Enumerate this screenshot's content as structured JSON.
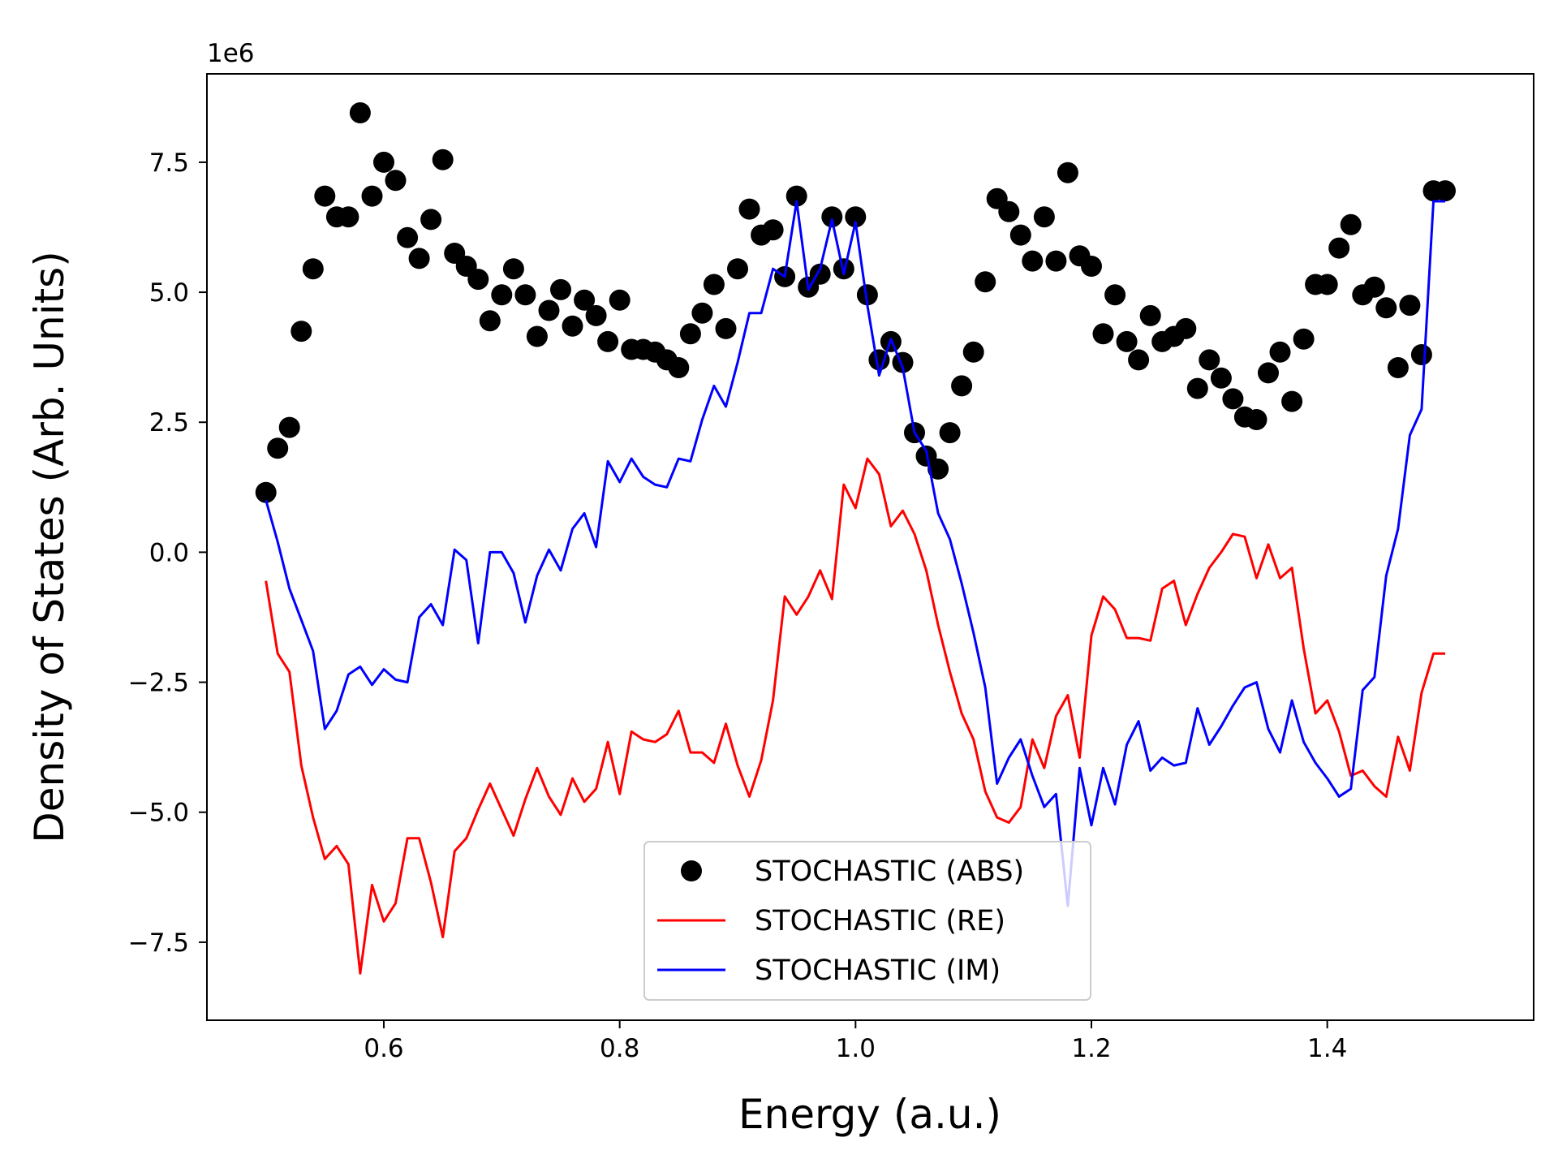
{
  "chart_data": {
    "type": "line",
    "title": "",
    "xlabel": "Energy (a.u.)",
    "ylabel": "Density of States (Arb. Units)",
    "y_offset_label": "1e6",
    "xlim": [
      0.45,
      1.575
    ],
    "ylim": [
      -9.0,
      9.2
    ],
    "y_scale_factor": 1000000,
    "grid": false,
    "legend_position": "lower-center",
    "x_ticks": [
      0.6,
      0.8,
      1.0,
      1.2,
      1.4
    ],
    "x_tick_labels": [
      "0.6",
      "0.8",
      "1.0",
      "1.2",
      "1.4"
    ],
    "y_ticks": [
      -7.5,
      -5.0,
      -2.5,
      0.0,
      2.5,
      5.0,
      7.5
    ],
    "y_tick_labels": [
      "−7.5",
      "−5.0",
      "−2.5",
      "0.0",
      "2.5",
      "5.0",
      "7.5"
    ],
    "series": [
      {
        "name": "STOCHASTIC (ABS)",
        "style": "marker",
        "color": "#000000",
        "x": [
          0.5,
          0.51,
          0.52,
          0.53,
          0.54,
          0.55,
          0.56,
          0.57,
          0.58,
          0.59,
          0.6,
          0.61,
          0.62,
          0.63,
          0.64,
          0.65,
          0.66,
          0.67,
          0.68,
          0.69,
          0.7,
          0.71,
          0.72,
          0.73,
          0.74,
          0.75,
          0.76,
          0.77,
          0.78,
          0.79,
          0.8,
          0.81,
          0.82,
          0.83,
          0.84,
          0.85,
          0.86,
          0.87,
          0.88,
          0.89,
          0.9,
          0.91,
          0.92,
          0.93,
          0.94,
          0.95,
          0.96,
          0.97,
          0.98,
          0.99,
          1.0,
          1.01,
          1.02,
          1.03,
          1.04,
          1.05,
          1.06,
          1.07,
          1.08,
          1.09,
          1.1,
          1.11,
          1.12,
          1.13,
          1.14,
          1.15,
          1.16,
          1.17,
          1.18,
          1.19,
          1.2,
          1.21,
          1.22,
          1.23,
          1.24,
          1.25,
          1.26,
          1.27,
          1.28,
          1.29,
          1.3,
          1.31,
          1.32,
          1.33,
          1.34,
          1.35,
          1.36,
          1.37,
          1.38,
          1.39,
          1.4,
          1.41,
          1.42,
          1.43,
          1.44,
          1.45,
          1.46,
          1.47,
          1.48,
          1.49,
          1.5
        ],
        "y": [
          1.15,
          2.0,
          2.4,
          4.25,
          5.45,
          6.85,
          6.45,
          6.45,
          8.45,
          6.85,
          7.5,
          7.15,
          6.05,
          5.65,
          6.4,
          7.55,
          5.75,
          5.5,
          5.25,
          4.45,
          4.95,
          5.45,
          4.95,
          4.15,
          4.65,
          5.05,
          4.35,
          4.85,
          4.55,
          4.05,
          4.85,
          3.9,
          3.9,
          3.85,
          3.7,
          3.55,
          4.2,
          4.6,
          5.15,
          4.3,
          5.45,
          6.6,
          6.1,
          6.2,
          5.3,
          6.85,
          5.1,
          5.35,
          6.45,
          5.45,
          6.45,
          4.95,
          3.7,
          4.05,
          3.65,
          2.3,
          1.85,
          1.6,
          2.3,
          3.2,
          3.85,
          5.2,
          6.8,
          6.55,
          6.1,
          5.6,
          6.45,
          5.6,
          7.3,
          5.7,
          5.5,
          4.2,
          4.95,
          4.05,
          3.7,
          4.55,
          4.05,
          4.15,
          4.3,
          3.15,
          3.7,
          3.35,
          2.95,
          2.6,
          2.55,
          3.45,
          3.85,
          2.9,
          4.1,
          5.15,
          5.15,
          5.85,
          6.3,
          4.95,
          5.1,
          4.7,
          3.55,
          4.75,
          3.8,
          6.95,
          6.95
        ]
      },
      {
        "name": "STOCHASTIC (RE)",
        "style": "line",
        "color": "#ff0000",
        "x": [
          0.5,
          0.51,
          0.52,
          0.53,
          0.54,
          0.55,
          0.56,
          0.57,
          0.58,
          0.59,
          0.6,
          0.61,
          0.62,
          0.63,
          0.64,
          0.65,
          0.66,
          0.67,
          0.68,
          0.69,
          0.7,
          0.71,
          0.72,
          0.73,
          0.74,
          0.75,
          0.76,
          0.77,
          0.78,
          0.79,
          0.8,
          0.81,
          0.82,
          0.83,
          0.84,
          0.85,
          0.86,
          0.87,
          0.88,
          0.89,
          0.9,
          0.91,
          0.92,
          0.93,
          0.94,
          0.95,
          0.96,
          0.97,
          0.98,
          0.99,
          1.0,
          1.01,
          1.02,
          1.03,
          1.04,
          1.05,
          1.06,
          1.07,
          1.08,
          1.09,
          1.1,
          1.11,
          1.12,
          1.13,
          1.14,
          1.15,
          1.16,
          1.17,
          1.18,
          1.19,
          1.2,
          1.21,
          1.22,
          1.23,
          1.24,
          1.25,
          1.26,
          1.27,
          1.28,
          1.29,
          1.3,
          1.31,
          1.32,
          1.33,
          1.34,
          1.35,
          1.36,
          1.37,
          1.38,
          1.39,
          1.4,
          1.41,
          1.42,
          1.43,
          1.44,
          1.45,
          1.46,
          1.47,
          1.48,
          1.49,
          1.5
        ],
        "y": [
          -0.55,
          -1.95,
          -2.3,
          -4.1,
          -5.1,
          -5.9,
          -5.65,
          -6.0,
          -8.1,
          -6.4,
          -7.1,
          -6.75,
          -5.5,
          -5.5,
          -6.35,
          -7.4,
          -5.75,
          -5.5,
          -4.95,
          -4.45,
          -4.95,
          -5.45,
          -4.75,
          -4.15,
          -4.7,
          -5.05,
          -4.35,
          -4.8,
          -4.55,
          -3.65,
          -4.65,
          -3.45,
          -3.6,
          -3.65,
          -3.5,
          -3.05,
          -3.85,
          -3.85,
          -4.05,
          -3.3,
          -4.1,
          -4.7,
          -4.0,
          -2.85,
          -0.85,
          -1.2,
          -0.85,
          -0.35,
          -0.9,
          1.3,
          0.85,
          1.8,
          1.5,
          0.5,
          0.8,
          0.35,
          -0.35,
          -1.4,
          -2.3,
          -3.1,
          -3.6,
          -4.6,
          -5.1,
          -5.2,
          -4.9,
          -3.6,
          -4.15,
          -3.15,
          -2.75,
          -3.95,
          -1.6,
          -0.85,
          -1.1,
          -1.65,
          -1.65,
          -1.7,
          -0.7,
          -0.55,
          -1.4,
          -0.8,
          -0.3,
          0.0,
          0.35,
          0.3,
          -0.5,
          0.15,
          -0.5,
          -0.3,
          -1.85,
          -3.1,
          -2.85,
          -3.45,
          -4.3,
          -4.2,
          -4.5,
          -4.7,
          -3.55,
          -4.2,
          -2.7,
          -1.95,
          -1.95
        ]
      },
      {
        "name": "STOCHASTIC (IM)",
        "style": "line",
        "color": "#0000ff",
        "x": [
          0.5,
          0.51,
          0.52,
          0.53,
          0.54,
          0.55,
          0.56,
          0.57,
          0.58,
          0.59,
          0.6,
          0.61,
          0.62,
          0.63,
          0.64,
          0.65,
          0.66,
          0.67,
          0.68,
          0.69,
          0.7,
          0.71,
          0.72,
          0.73,
          0.74,
          0.75,
          0.76,
          0.77,
          0.78,
          0.79,
          0.8,
          0.81,
          0.82,
          0.83,
          0.84,
          0.85,
          0.86,
          0.87,
          0.88,
          0.89,
          0.9,
          0.91,
          0.92,
          0.93,
          0.94,
          0.95,
          0.96,
          0.97,
          0.98,
          0.99,
          1.0,
          1.01,
          1.02,
          1.03,
          1.04,
          1.05,
          1.06,
          1.07,
          1.08,
          1.09,
          1.1,
          1.11,
          1.12,
          1.13,
          1.14,
          1.15,
          1.16,
          1.17,
          1.18,
          1.19,
          1.2,
          1.21,
          1.22,
          1.23,
          1.24,
          1.25,
          1.26,
          1.27,
          1.28,
          1.29,
          1.3,
          1.31,
          1.32,
          1.33,
          1.34,
          1.35,
          1.36,
          1.37,
          1.38,
          1.39,
          1.4,
          1.41,
          1.42,
          1.43,
          1.44,
          1.45,
          1.46,
          1.47,
          1.48,
          1.49,
          1.5
        ],
        "y": [
          1.0,
          0.2,
          -0.7,
          -1.3,
          -1.9,
          -3.4,
          -3.05,
          -2.35,
          -2.2,
          -2.55,
          -2.25,
          -2.45,
          -2.5,
          -1.25,
          -1.0,
          -1.4,
          0.05,
          -0.15,
          -1.75,
          0.0,
          0.0,
          -0.4,
          -1.35,
          -0.45,
          0.05,
          -0.35,
          0.45,
          0.75,
          0.1,
          1.75,
          1.35,
          1.8,
          1.45,
          1.3,
          1.25,
          1.8,
          1.75,
          2.55,
          3.2,
          2.8,
          3.65,
          4.6,
          4.6,
          5.45,
          5.3,
          6.75,
          5.05,
          5.45,
          6.4,
          5.35,
          6.35,
          4.75,
          3.4,
          4.1,
          3.55,
          2.3,
          1.95,
          0.75,
          0.25,
          -0.6,
          -1.55,
          -2.6,
          -4.45,
          -3.95,
          -3.6,
          -4.3,
          -4.9,
          -4.65,
          -6.8,
          -4.15,
          -5.25,
          -4.15,
          -4.85,
          -3.7,
          -3.25,
          -4.2,
          -3.95,
          -4.1,
          -4.05,
          -3.0,
          -3.7,
          -3.35,
          -2.95,
          -2.6,
          -2.5,
          -3.4,
          -3.85,
          -2.85,
          -3.65,
          -4.05,
          -4.35,
          -4.7,
          -4.55,
          -2.65,
          -2.4,
          -0.45,
          0.45,
          2.25,
          2.75,
          6.75,
          6.75
        ]
      }
    ]
  }
}
